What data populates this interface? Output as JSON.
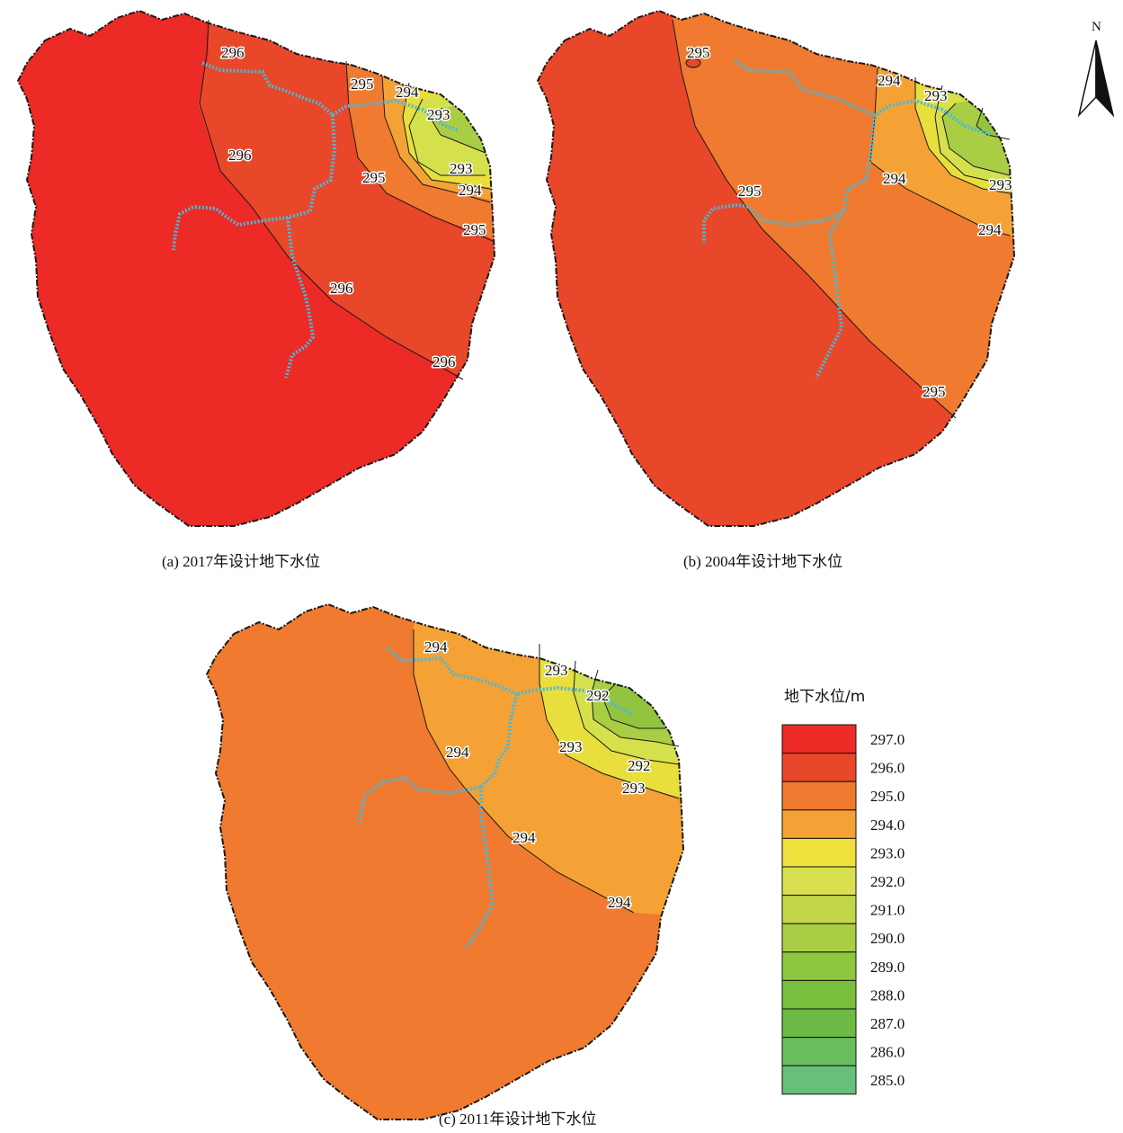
{
  "panels": [
    {
      "id": "a",
      "caption": "(a) 2017年设计地下水位",
      "zone_colors": [
        "#ec2a26",
        "#e9472a",
        "#f07a2f",
        "#f4a236",
        "#e8df3c",
        "#d5e04d",
        "#a9cd45"
      ],
      "contour_labels": [
        "296",
        "296",
        "295",
        "294",
        "293",
        "293",
        "294",
        "295",
        "295",
        "296",
        "296"
      ]
    },
    {
      "id": "b",
      "caption": "(b) 2004年设计地下水位",
      "zone_colors": [
        "#e9472a",
        "#f07a2f",
        "#f4a236",
        "#e8df3c",
        "#d5e04d",
        "#a9cd45",
        "#92c43f"
      ],
      "contour_labels": [
        "295",
        "294",
        "293",
        "294",
        "293",
        "294",
        "295",
        "295"
      ]
    },
    {
      "id": "c",
      "caption": "(c) 2011年设计地下水位",
      "zone_colors": [
        "#f07a2f",
        "#f4a236",
        "#e8df3c",
        "#d5e04d",
        "#a9cd45",
        "#92c43f"
      ],
      "contour_labels": [
        "294",
        "293",
        "292",
        "294",
        "293",
        "292",
        "293",
        "294",
        "294"
      ]
    }
  ],
  "legend": {
    "title": "地下水位/m",
    "items": [
      {
        "value": "297.0",
        "color": "#ec2a26"
      },
      {
        "value": "296.0",
        "color": "#e9472a"
      },
      {
        "value": "295.0",
        "color": "#f07a2f"
      },
      {
        "value": "294.0",
        "color": "#f4a236"
      },
      {
        "value": "293.0",
        "color": "#efe03c"
      },
      {
        "value": "292.0",
        "color": "#d9e04f"
      },
      {
        "value": "291.0",
        "color": "#c2d649"
      },
      {
        "value": "290.0",
        "color": "#a9cd45"
      },
      {
        "value": "289.0",
        "color": "#8ec63f"
      },
      {
        "value": "288.0",
        "color": "#79bf3d"
      },
      {
        "value": "287.0",
        "color": "#6dbb45"
      },
      {
        "value": "286.0",
        "color": "#69bd5c"
      },
      {
        "value": "285.0",
        "color": "#66c07a"
      }
    ]
  },
  "north_arrow": {
    "label": "N"
  },
  "river_color": "#4cb8d8"
}
